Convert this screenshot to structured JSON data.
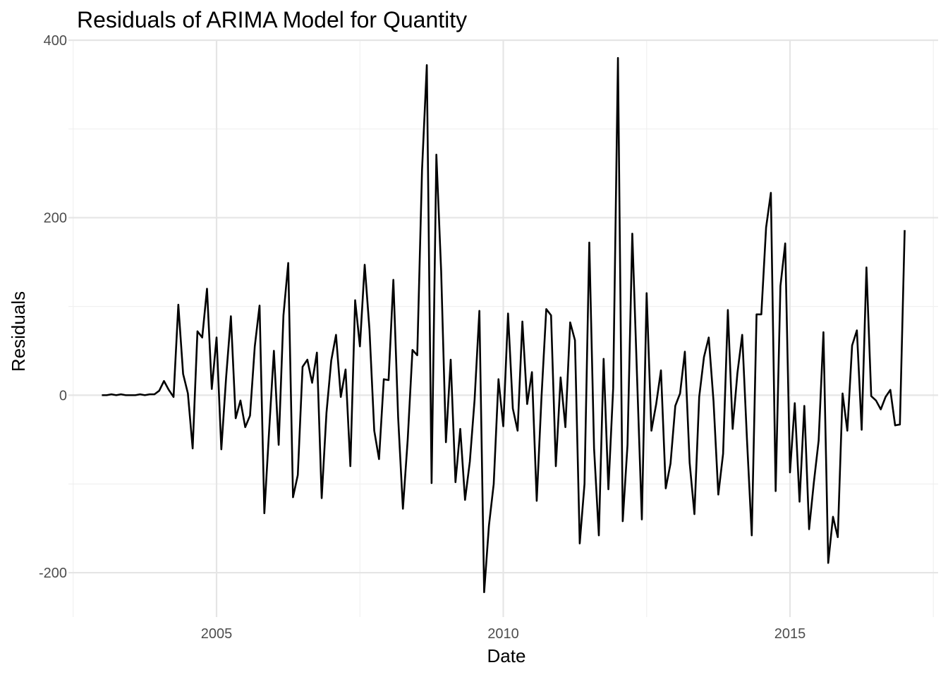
{
  "chart_data": {
    "type": "line",
    "title": "Residuals of ARIMA Model for Quantity",
    "xlabel": "Date",
    "ylabel": "Residuals",
    "xlim": [
      "2002-06-01",
      "2017-08-01"
    ],
    "ylim": [
      -250,
      400
    ],
    "x_ticks": [
      "2005",
      "2010",
      "2015"
    ],
    "y_ticks": [
      "-200",
      "0",
      "200",
      "400"
    ],
    "grid": true,
    "legend": "none",
    "line_color": "#000000",
    "series": [
      {
        "x": [
          "2003-01",
          "2003-02",
          "2003-03",
          "2003-04",
          "2003-05",
          "2003-06",
          "2003-07",
          "2003-08",
          "2003-09",
          "2003-10",
          "2003-11",
          "2003-12",
          "2004-01",
          "2004-02",
          "2004-03",
          "2004-04",
          "2004-05",
          "2004-06",
          "2004-07",
          "2004-08",
          "2004-09",
          "2004-10",
          "2004-11",
          "2004-12",
          "2005-01",
          "2005-02",
          "2005-03",
          "2005-04",
          "2005-05",
          "2005-06",
          "2005-07",
          "2005-08",
          "2005-09",
          "2005-10",
          "2005-11",
          "2005-12",
          "2006-01",
          "2006-02",
          "2006-03",
          "2006-04",
          "2006-05",
          "2006-06",
          "2006-07",
          "2006-08",
          "2006-09",
          "2006-10",
          "2006-11",
          "2006-12",
          "2007-01",
          "2007-02",
          "2007-03",
          "2007-04",
          "2007-05",
          "2007-06",
          "2007-07",
          "2007-08",
          "2007-09",
          "2007-10",
          "2007-11",
          "2007-12",
          "2008-01",
          "2008-02",
          "2008-03",
          "2008-04",
          "2008-05",
          "2008-06",
          "2008-07",
          "2008-08",
          "2008-09",
          "2008-10",
          "2008-11",
          "2008-12",
          "2009-01",
          "2009-02",
          "2009-03",
          "2009-04",
          "2009-05",
          "2009-06",
          "2009-07",
          "2009-08",
          "2009-09",
          "2009-10",
          "2009-11",
          "2009-12",
          "2010-01",
          "2010-02",
          "2010-03",
          "2010-04",
          "2010-05",
          "2010-06",
          "2010-07",
          "2010-08",
          "2010-09",
          "2010-10",
          "2010-11",
          "2010-12",
          "2011-01",
          "2011-02",
          "2011-03",
          "2011-04",
          "2011-05",
          "2011-06",
          "2011-07",
          "2011-08",
          "2011-09",
          "2011-10",
          "2011-11",
          "2011-12",
          "2012-01",
          "2012-02",
          "2012-03",
          "2012-04",
          "2012-05",
          "2012-06",
          "2012-07",
          "2012-08",
          "2012-09",
          "2012-10",
          "2012-11",
          "2012-12",
          "2013-01",
          "2013-02",
          "2013-03",
          "2013-04",
          "2013-05",
          "2013-06",
          "2013-07",
          "2013-08",
          "2013-09",
          "2013-10",
          "2013-11",
          "2013-12",
          "2014-01",
          "2014-02",
          "2014-03",
          "2014-04",
          "2014-05",
          "2014-06",
          "2014-07",
          "2014-08",
          "2014-09",
          "2014-10",
          "2014-11",
          "2014-12",
          "2015-01",
          "2015-02",
          "2015-03",
          "2015-04",
          "2015-05",
          "2015-06",
          "2015-07",
          "2015-08",
          "2015-09",
          "2015-10",
          "2015-11",
          "2015-12",
          "2016-01",
          "2016-02",
          "2016-03",
          "2016-04",
          "2016-05",
          "2016-06",
          "2016-07",
          "2016-08",
          "2016-09",
          "2016-10",
          "2016-11",
          "2016-12",
          "2017-01"
        ],
        "values": [
          0,
          0,
          1,
          0,
          1,
          0,
          0,
          0,
          1,
          0,
          1,
          1,
          5,
          16,
          6,
          -2,
          102,
          24,
          2,
          -60,
          72,
          65,
          120,
          7,
          65,
          -61,
          20,
          89,
          -26,
          -6,
          -36,
          -23,
          55,
          101,
          -133,
          -40,
          50,
          -56,
          90,
          149,
          -115,
          -90,
          32,
          40,
          14,
          48,
          -116,
          -20,
          39,
          68,
          -2,
          29,
          -80,
          107,
          55,
          147,
          74,
          -40,
          -72,
          18,
          17,
          130,
          -25,
          -128,
          -50,
          51,
          45,
          254,
          372,
          -99,
          271,
          140,
          -53,
          40,
          -98,
          -38,
          -118,
          -75,
          -5,
          95,
          -222,
          -147,
          -100,
          18,
          -35,
          92,
          -15,
          -40,
          83,
          -10,
          26,
          -119,
          -2,
          97,
          90,
          -80,
          20,
          -36,
          82,
          62,
          -167,
          -100,
          172,
          -60,
          -158,
          41,
          -106,
          8,
          380,
          -142,
          -56,
          182,
          20,
          -140,
          115,
          -40,
          -10,
          28,
          -105,
          -77,
          -12,
          2,
          49,
          -76,
          -134,
          -2,
          43,
          65,
          -7,
          -112,
          -66,
          96,
          -38,
          25,
          68,
          -50,
          -158,
          91,
          91,
          189,
          228,
          -108,
          123,
          171,
          -87,
          -9,
          -120,
          -12,
          -151,
          -98,
          -51,
          71,
          -189,
          -137,
          -160,
          2,
          -40,
          56,
          73,
          -39,
          144,
          -1,
          -6,
          -16,
          -2,
          6,
          -34,
          -33,
          186
        ]
      }
    ]
  }
}
